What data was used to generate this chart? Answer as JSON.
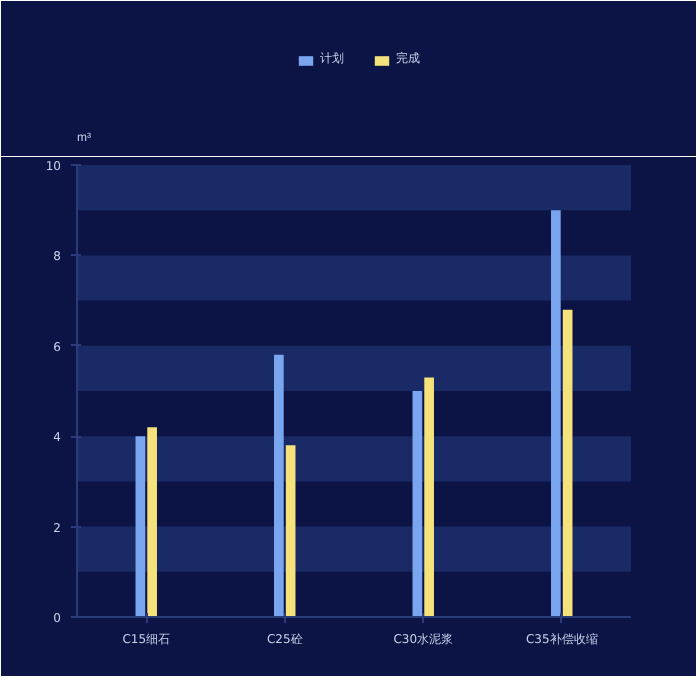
{
  "chart_data": {
    "type": "bar",
    "ylabel": "m³",
    "categories": [
      "C15细石",
      "C25砼",
      "C30水泥浆",
      "C35补偿收缩"
    ],
    "series": [
      {
        "name": "计划",
        "color": "#7aa6f0",
        "values": [
          4.0,
          5.8,
          5.0,
          9.0
        ]
      },
      {
        "name": "完成",
        "color": "#f5e27a",
        "values": [
          4.2,
          3.8,
          5.3,
          6.8
        ]
      }
    ],
    "ylim": [
      0,
      10
    ],
    "yticks": [
      0,
      2,
      4,
      6,
      8,
      10
    ],
    "bands": [
      {
        "axis": "y",
        "from": 1,
        "to": 2,
        "color": "#1a2a66"
      },
      {
        "axis": "y",
        "from": 3,
        "to": 4,
        "color": "#1a2a66"
      },
      {
        "axis": "y",
        "from": 5,
        "to": 6,
        "color": "#1a2a66"
      },
      {
        "axis": "y",
        "from": 7,
        "to": 8,
        "color": "#1a2a66"
      },
      {
        "axis": "y",
        "from": 9,
        "to": 10,
        "color": "#1a2a66"
      }
    ],
    "legend": "top"
  }
}
